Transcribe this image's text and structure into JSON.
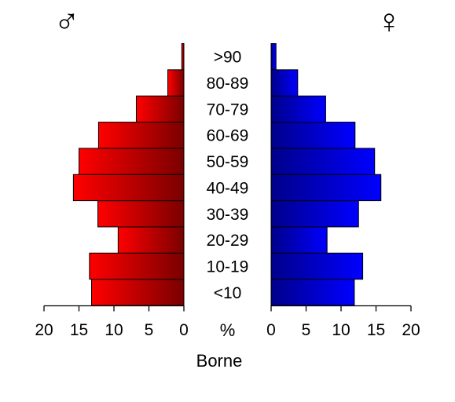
{
  "chart_data": {
    "type": "bar",
    "subtype": "population-pyramid",
    "xlabel": "Borne",
    "unit_label": "%",
    "xlim": [
      0,
      20
    ],
    "ticks": [
      0,
      5,
      10,
      15,
      20
    ],
    "categories": [
      "<10",
      "10-19",
      "20-29",
      "30-39",
      "40-49",
      "50-59",
      "60-69",
      "70-79",
      "80-89",
      ">90"
    ],
    "series": [
      {
        "symbol": "♂",
        "side": "left",
        "values": [
          13.2,
          13.5,
          9.4,
          12.3,
          15.8,
          15.0,
          12.2,
          6.8,
          2.3,
          0.3
        ],
        "gradient": [
          "#ff0000",
          "#7a0000"
        ]
      },
      {
        "symbol": "♀",
        "side": "right",
        "values": [
          11.9,
          13.1,
          8.0,
          12.5,
          15.7,
          14.8,
          12.0,
          7.8,
          3.8,
          0.7
        ],
        "gradient": [
          "#00008a",
          "#0000ff"
        ]
      }
    ],
    "grid": false,
    "legend": "none"
  }
}
